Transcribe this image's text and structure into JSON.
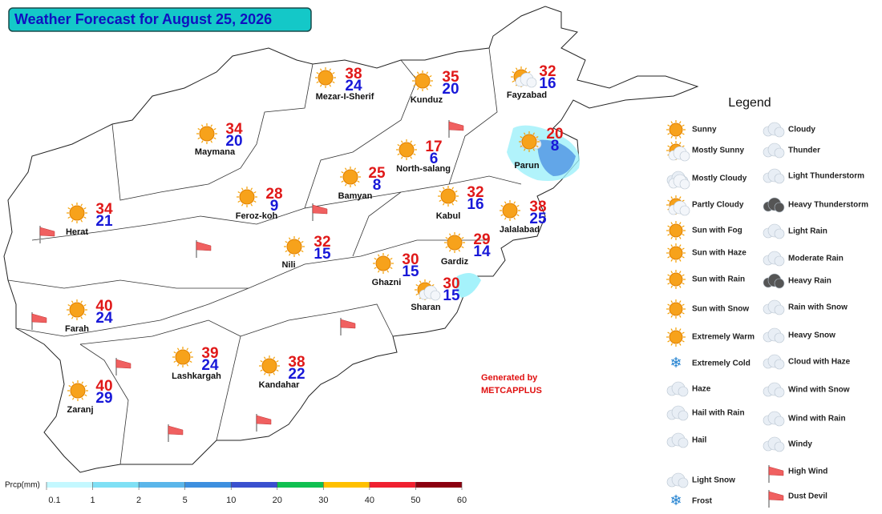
{
  "header": {
    "title": "Weather Forecast for August 25, 2026"
  },
  "cities": [
    {
      "name": "Mezar-I-Sherif",
      "max": 38,
      "min": 24
    },
    {
      "name": "Kunduz",
      "max": 35,
      "min": 20
    },
    {
      "name": "Fayzabad",
      "max": 32,
      "min": 16
    },
    {
      "name": "Maymana",
      "max": 34,
      "min": 20
    },
    {
      "name": "North-salang",
      "max": 17,
      "min": 6
    },
    {
      "name": "Parun",
      "max": 20,
      "min": 8
    },
    {
      "name": "Bamyan",
      "max": 25,
      "min": 8
    },
    {
      "name": "Feroz-koh",
      "max": 28,
      "min": 9
    },
    {
      "name": "Kabul",
      "max": 32,
      "min": 16
    },
    {
      "name": "Jalalabad",
      "max": 38,
      "min": 25
    },
    {
      "name": "Herat",
      "max": 34,
      "min": 21
    },
    {
      "name": "Nili",
      "max": 32,
      "min": 15
    },
    {
      "name": "Gardiz",
      "max": 29,
      "min": 14
    },
    {
      "name": "Ghazni",
      "max": 30,
      "min": 15
    },
    {
      "name": "Sharan",
      "max": 30,
      "min": 15
    },
    {
      "name": "Farah",
      "max": 40,
      "min": 24
    },
    {
      "name": "Lashkargah",
      "max": 39,
      "min": 24
    },
    {
      "name": "Kandahar",
      "max": 38,
      "min": 22
    },
    {
      "name": "Zaranj",
      "max": 40,
      "min": 29
    }
  ],
  "credit": {
    "line1": "Generated by",
    "line2": "METCAPPLUS"
  },
  "legend": {
    "title": "Legend",
    "items": [
      "Sunny",
      "Mostly Sunny",
      "Mostly Cloudy",
      "Partly Cloudy",
      "Sun with Fog",
      "Sun with Haze",
      "Sun with Rain",
      "Sun with Snow",
      "Extremely Warm",
      "Extremely Cold",
      "Haze",
      "Hail with Rain",
      "Hail",
      "Light Snow",
      "Frost",
      "Cloudy",
      "Thunder",
      "Light Thunderstorm",
      "Heavy Thunderstorm",
      "Light Rain",
      "Moderate Rain",
      "Heavy Rain",
      "Rain with Snow",
      "Heavy Snow",
      "Cloud with Haze",
      "Wind with Snow",
      "Wind with Rain",
      "Windy",
      "High Wind",
      "Dust Devil"
    ]
  },
  "colorbar": {
    "title": "Prcp(mm)",
    "ticks": [
      0.1,
      1,
      2,
      5,
      10,
      20,
      30,
      40,
      50,
      60
    ],
    "colors": [
      "#c4f8ff",
      "#7fe0f5",
      "#5bb6ea",
      "#3d8fdf",
      "#3a50cf",
      "#10c050",
      "#ffc000",
      "#f02030",
      "#8b0010"
    ]
  }
}
